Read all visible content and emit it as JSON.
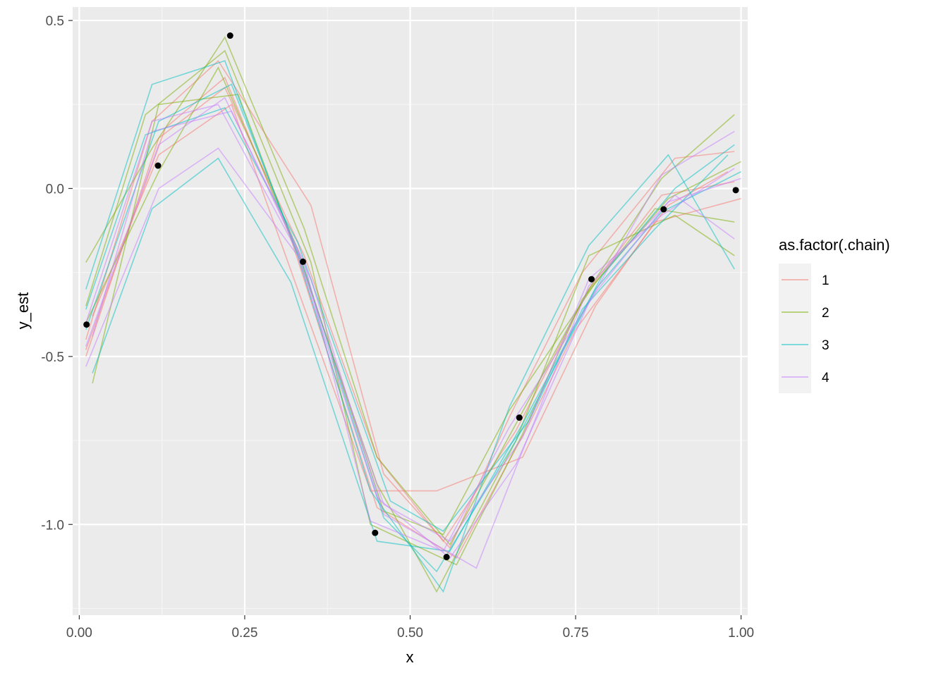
{
  "chart_data": {
    "type": "line",
    "title": "",
    "xlabel": "x",
    "ylabel": "y_est",
    "xlim": [
      -0.01,
      1.01
    ],
    "ylim": [
      -1.27,
      0.54
    ],
    "x_ticks": [
      0.0,
      0.25,
      0.5,
      0.75,
      1.0
    ],
    "x_tick_labels": [
      "0.00",
      "0.25",
      "0.50",
      "0.75",
      "1.00"
    ],
    "y_ticks": [
      -1.0,
      -0.5,
      0.0,
      0.5
    ],
    "y_tick_labels": [
      "-1.0",
      "-0.5",
      "0.0",
      "0.5"
    ],
    "grid": true,
    "legend": {
      "title": "as.factor(.chain)",
      "position": "right",
      "entries": [
        {
          "label": "1",
          "color": "#F8766D"
        },
        {
          "label": "2",
          "color": "#7CAE00"
        },
        {
          "label": "3",
          "color": "#00BFC4"
        },
        {
          "label": "4",
          "color": "#C77CFF"
        }
      ]
    },
    "points": {
      "x": [
        0.011,
        0.119,
        0.228,
        0.338,
        0.447,
        0.555,
        0.665,
        0.774,
        0.883,
        0.992
      ],
      "y": [
        -0.405,
        0.068,
        0.455,
        -0.218,
        -1.025,
        -1.097,
        -0.682,
        -0.27,
        -0.062,
        -0.005
      ]
    },
    "series": [
      {
        "chain": "1",
        "x": [
          0.01,
          0.12,
          0.22,
          0.34,
          0.45,
          0.55,
          0.66,
          0.77,
          0.88,
          0.99
        ],
        "y": [
          -0.5,
          0.15,
          0.3,
          -0.2,
          -0.8,
          -1.05,
          -0.72,
          -0.3,
          -0.02,
          0.02
        ]
      },
      {
        "chain": "1",
        "x": [
          0.01,
          0.11,
          0.21,
          0.35,
          0.46,
          0.56,
          0.65,
          0.76,
          0.9,
          0.99
        ],
        "y": [
          -0.45,
          0.2,
          0.38,
          -0.05,
          -0.85,
          -1.07,
          -0.68,
          -0.25,
          0.09,
          0.11
        ]
      },
      {
        "chain": "1",
        "x": [
          0.02,
          0.12,
          0.23,
          0.33,
          0.44,
          0.54,
          0.67,
          0.78,
          0.87,
          1.0
        ],
        "y": [
          -0.38,
          0.1,
          0.25,
          -0.3,
          -0.9,
          -0.9,
          -0.8,
          -0.35,
          -0.1,
          -0.03
        ]
      },
      {
        "chain": "1",
        "x": [
          0.01,
          0.13,
          0.22,
          0.32,
          0.45,
          0.57,
          0.68,
          0.75,
          0.89,
          0.98
        ],
        "y": [
          -0.48,
          0.18,
          0.33,
          -0.15,
          -0.95,
          -1.1,
          -0.7,
          -0.42,
          -0.05,
          0.05
        ]
      },
      {
        "chain": "2",
        "x": [
          0.01,
          0.11,
          0.22,
          0.34,
          0.45,
          0.56,
          0.66,
          0.77,
          0.88,
          0.99
        ],
        "y": [
          -0.22,
          0.12,
          0.45,
          -0.12,
          -0.8,
          -1.06,
          -0.7,
          -0.3,
          0.03,
          0.22
        ]
      },
      {
        "chain": "2",
        "x": [
          0.02,
          0.12,
          0.24,
          0.34,
          0.45,
          0.54,
          0.66,
          0.77,
          0.9,
          0.99
        ],
        "y": [
          -0.58,
          0.25,
          0.28,
          -0.25,
          -0.88,
          -1.2,
          -0.75,
          -0.2,
          -0.08,
          -0.2
        ]
      },
      {
        "chain": "2",
        "x": [
          0.01,
          0.12,
          0.21,
          0.33,
          0.46,
          0.55,
          0.65,
          0.78,
          0.89,
          1.0
        ],
        "y": [
          -0.4,
          0.05,
          0.36,
          -0.18,
          -0.96,
          -1.03,
          -0.66,
          -0.28,
          -0.03,
          0.08
        ]
      },
      {
        "chain": "2",
        "x": [
          0.01,
          0.1,
          0.22,
          0.35,
          0.44,
          0.57,
          0.67,
          0.76,
          0.87,
          0.99
        ],
        "y": [
          -0.35,
          0.22,
          0.41,
          -0.22,
          -1.0,
          -1.12,
          -0.73,
          -0.33,
          -0.06,
          -0.1
        ]
      },
      {
        "chain": "3",
        "x": [
          0.01,
          0.11,
          0.22,
          0.33,
          0.44,
          0.55,
          0.65,
          0.77,
          0.89,
          0.99
        ],
        "y": [
          -0.3,
          0.31,
          0.38,
          -0.2,
          -0.9,
          -1.2,
          -0.65,
          -0.17,
          0.1,
          -0.24
        ]
      },
      {
        "chain": "3",
        "x": [
          0.02,
          0.11,
          0.21,
          0.32,
          0.45,
          0.56,
          0.67,
          0.79,
          0.9,
          0.99
        ],
        "y": [
          -0.55,
          -0.06,
          0.09,
          -0.28,
          -1.05,
          -1.08,
          -0.7,
          -0.26,
          0.0,
          0.13
        ]
      },
      {
        "chain": "3",
        "x": [
          0.01,
          0.12,
          0.23,
          0.34,
          0.46,
          0.54,
          0.66,
          0.78,
          0.88,
          1.0
        ],
        "y": [
          -0.42,
          0.2,
          0.31,
          -0.24,
          -0.98,
          -1.14,
          -0.75,
          -0.3,
          -0.07,
          0.05
        ]
      },
      {
        "chain": "3",
        "x": [
          0.01,
          0.1,
          0.22,
          0.33,
          0.47,
          0.55,
          0.68,
          0.76,
          0.87,
          0.98
        ],
        "y": [
          -0.36,
          0.16,
          0.24,
          -0.16,
          -0.93,
          -1.02,
          -0.69,
          -0.36,
          -0.12,
          0.1
        ]
      },
      {
        "chain": "4",
        "x": [
          0.01,
          0.12,
          0.21,
          0.33,
          0.45,
          0.56,
          0.66,
          0.77,
          0.88,
          0.99
        ],
        "y": [
          -0.53,
          0.0,
          0.12,
          -0.2,
          -0.92,
          -1.1,
          -0.82,
          -0.34,
          0.04,
          0.17
        ]
      },
      {
        "chain": "4",
        "x": [
          0.02,
          0.11,
          0.23,
          0.35,
          0.46,
          0.6,
          0.67,
          0.77,
          0.9,
          0.99
        ],
        "y": [
          -0.44,
          0.17,
          0.23,
          -0.27,
          -0.97,
          -1.13,
          -0.78,
          -0.29,
          -0.02,
          -0.15
        ]
      },
      {
        "chain": "4",
        "x": [
          0.01,
          0.12,
          0.22,
          0.34,
          0.44,
          0.55,
          0.65,
          0.78,
          0.89,
          1.0
        ],
        "y": [
          -0.47,
          0.13,
          0.27,
          -0.22,
          -0.99,
          -1.08,
          -0.71,
          -0.31,
          -0.04,
          0.03
        ]
      },
      {
        "chain": "4",
        "x": [
          0.01,
          0.11,
          0.21,
          0.33,
          0.46,
          0.56,
          0.67,
          0.77,
          0.88,
          0.99
        ],
        "y": [
          -0.4,
          0.2,
          0.25,
          -0.19,
          -0.94,
          -1.05,
          -0.74,
          -0.27,
          -0.08,
          0.06
        ]
      }
    ]
  }
}
